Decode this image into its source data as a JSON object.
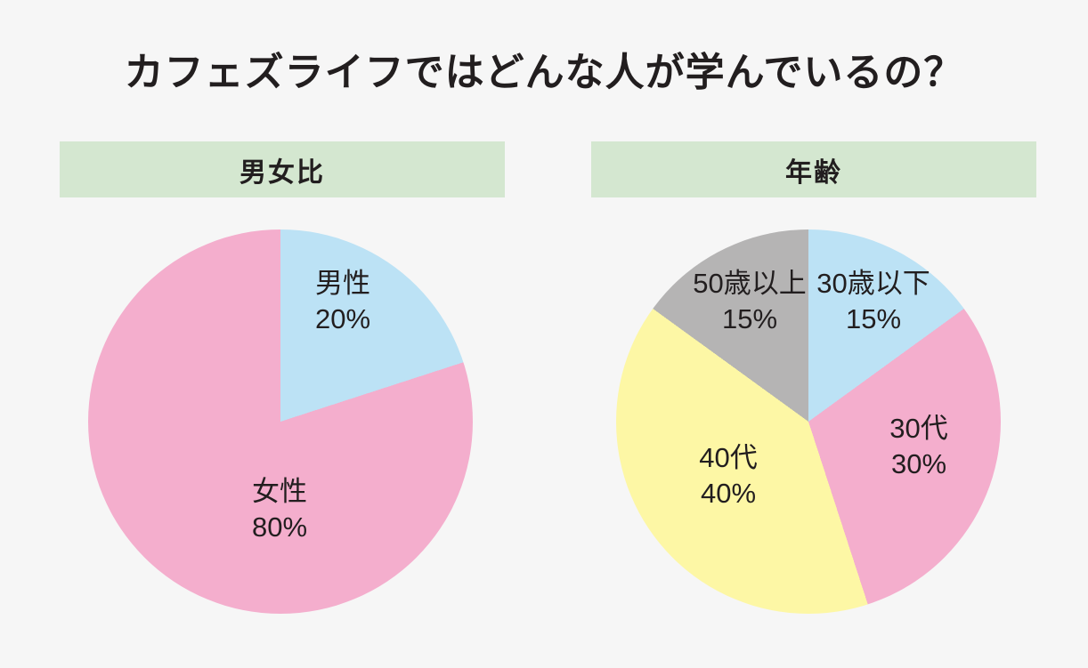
{
  "page": {
    "title": "カフェズライフではどんな人が学んでいるの？",
    "background": "#f6f6f6",
    "header_bg": "#d4e7d0",
    "text_color": "#221e1f"
  },
  "chart_data": [
    {
      "type": "pie",
      "title": "男女比",
      "start_angle": "12 o'clock",
      "direction": "clockwise",
      "legend_position": "labels inside slices",
      "slices": [
        {
          "label": "男性",
          "value": 20,
          "value_label": "20%",
          "color": "#bce2f5"
        },
        {
          "label": "女性",
          "value": 80,
          "value_label": "80%",
          "color": "#f4aecd"
        }
      ]
    },
    {
      "type": "pie",
      "title": "年齢",
      "start_angle": "12 o'clock",
      "direction": "clockwise",
      "legend_position": "labels inside slices",
      "slices": [
        {
          "label": "30歳以下",
          "value": 15,
          "value_label": "15%",
          "color": "#bce2f5"
        },
        {
          "label": "30代",
          "value": 30,
          "value_label": "30%",
          "color": "#f4aecd"
        },
        {
          "label": "40代",
          "value": 40,
          "value_label": "40%",
          "color": "#fdf7a5"
        },
        {
          "label": "50歳以上",
          "value": 15,
          "value_label": "15%",
          "color": "#b5b4b4"
        }
      ]
    }
  ]
}
